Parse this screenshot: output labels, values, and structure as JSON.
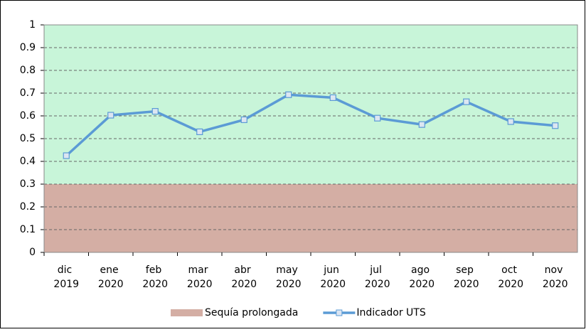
{
  "chart_data": {
    "type": "line",
    "categories": [
      "dic 2019",
      "ene 2020",
      "feb 2020",
      "mar 2020",
      "abr 2020",
      "may 2020",
      "jun 2020",
      "jul 2020",
      "ago 2020",
      "sep 2020",
      "oct 2020",
      "nov 2020"
    ],
    "series": [
      {
        "name": "Indicador UTS",
        "color": "#5b9bd5",
        "values": [
          0.425,
          0.603,
          0.62,
          0.53,
          0.583,
          0.693,
          0.68,
          0.59,
          0.562,
          0.662,
          0.575,
          0.557
        ]
      }
    ],
    "bands": [
      {
        "name": "Sequía prolongada",
        "from": 0,
        "to": 0.3,
        "color": "#d4aea4"
      },
      {
        "from": 0.3,
        "to": 1,
        "color": "#c8f5d9"
      }
    ],
    "ylim": [
      0,
      1
    ],
    "yticks": [
      0,
      0.1,
      0.2,
      0.3,
      0.4,
      0.5,
      0.6,
      0.7,
      0.8,
      0.9,
      1
    ],
    "grid": true
  }
}
